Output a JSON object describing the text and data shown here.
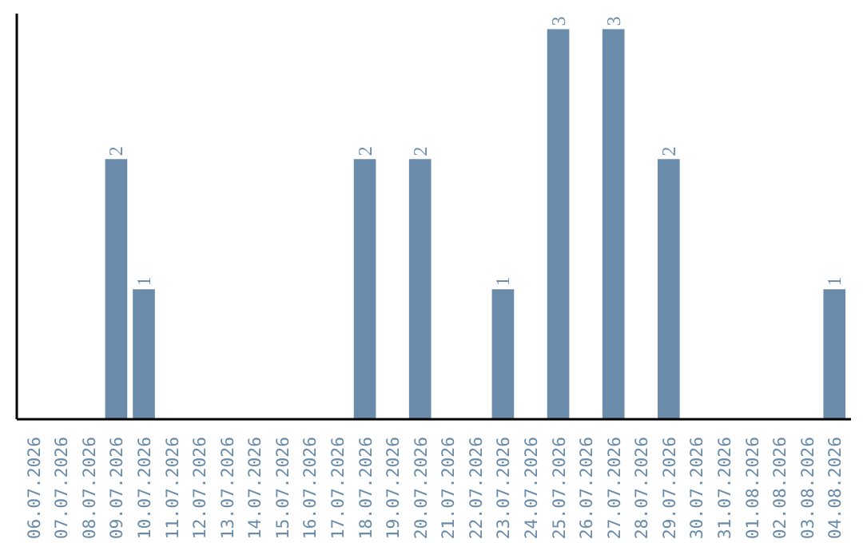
{
  "chart_data": {
    "type": "bar",
    "categories": [
      "06.07.2026",
      "07.07.2026",
      "08.07.2026",
      "09.07.2026",
      "10.07.2026",
      "11.07.2026",
      "12.07.2026",
      "13.07.2026",
      "14.07.2026",
      "15.07.2026",
      "16.07.2026",
      "17.07.2026",
      "18.07.2026",
      "19.07.2026",
      "20.07.2026",
      "21.07.2026",
      "22.07.2026",
      "23.07.2026",
      "24.07.2026",
      "25.07.2026",
      "26.07.2026",
      "27.07.2026",
      "28.07.2026",
      "29.07.2026",
      "30.07.2026",
      "31.07.2026",
      "01.08.2026",
      "02.08.2026",
      "03.08.2026",
      "04.08.2026"
    ],
    "values": [
      0,
      0,
      0,
      2,
      1,
      0,
      0,
      0,
      0,
      0,
      0,
      0,
      2,
      0,
      2,
      0,
      0,
      1,
      0,
      3,
      0,
      3,
      0,
      2,
      0,
      0,
      0,
      0,
      0,
      1
    ],
    "value_labels": [
      null,
      null,
      null,
      "2",
      "1",
      null,
      null,
      null,
      null,
      null,
      null,
      null,
      "2",
      null,
      "2",
      null,
      null,
      "1",
      null,
      "3",
      null,
      "3",
      null,
      "2",
      null,
      null,
      null,
      null,
      null,
      "1"
    ],
    "color": "#6a8caa",
    "grid": false
  }
}
